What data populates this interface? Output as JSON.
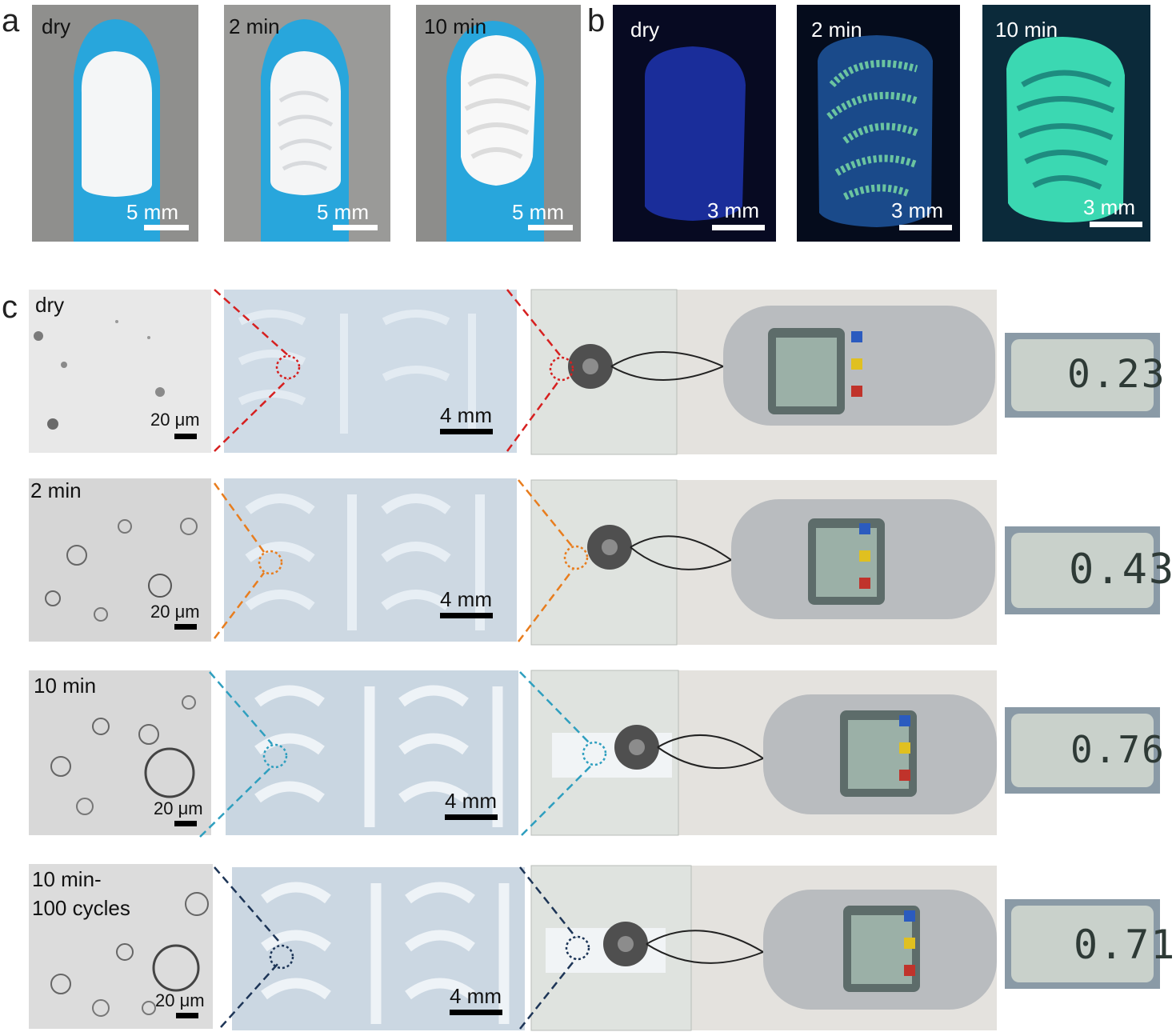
{
  "panel_letters": {
    "a": "a",
    "b": "b",
    "c": "c"
  },
  "panel_a": {
    "photos": [
      {
        "label": "dry",
        "scale_bar": "5 mm"
      },
      {
        "label": "2 min",
        "scale_bar": "5 mm"
      },
      {
        "label": "10 min",
        "scale_bar": "5 mm"
      }
    ]
  },
  "panel_b": {
    "photos": [
      {
        "label": "dry",
        "scale_bar": "3 mm"
      },
      {
        "label": "2 min",
        "scale_bar": "3 mm"
      },
      {
        "label": "10 min",
        "scale_bar": "3 mm"
      }
    ]
  },
  "panel_c": {
    "rows": [
      {
        "label": "dry",
        "micro_scale": "20 μm",
        "macro_scale": "4 mm",
        "readout": "0.23",
        "highlight_color": "#d62020"
      },
      {
        "label": "2 min",
        "micro_scale": "20 μm",
        "macro_scale": "4 mm",
        "readout": "0.43",
        "highlight_color": "#e87d1e"
      },
      {
        "label": "10 min",
        "micro_scale": "20 μm",
        "macro_scale": "4 mm",
        "readout": "0.76",
        "highlight_color": "#2f9fbf"
      },
      {
        "label_line1": "10 min-",
        "label_line2": "100 cycles",
        "micro_scale": "20 μm",
        "macro_scale": "4 mm",
        "readout": "0.71",
        "highlight_color": "#1d3557"
      }
    ]
  }
}
